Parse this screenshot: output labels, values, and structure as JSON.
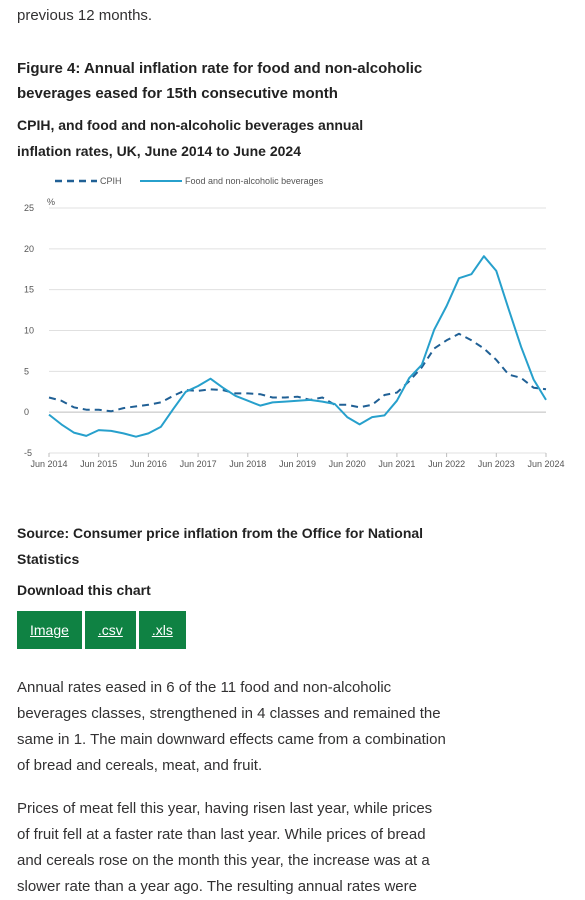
{
  "intro_text": "previous 12 months.",
  "figure": {
    "title": "Figure 4: Annual inflation rate for food and non-alcoholic beverages eased for 15th consecutive month",
    "subtitle": "CPIH, and food and non-alcoholic beverages annual inflation rates, UK, June 2014 to June 2024"
  },
  "colors": {
    "cpih": "#206095",
    "food": "#27a0cc",
    "button": "#0f8243",
    "grid": "#e0e0e0"
  },
  "chart_data": {
    "type": "line",
    "ylabel": "%",
    "ylim": [
      -5,
      25
    ],
    "yticks": [
      "25",
      "20",
      "15",
      "10",
      "5",
      "0",
      "-5"
    ],
    "xticks": [
      "Jun 2014",
      "Jun 2015",
      "Jun 2016",
      "Jun 2017",
      "Jun 2018",
      "Jun 2019",
      "Jun 2020",
      "Jun 2021",
      "Jun 2022",
      "Jun 2023",
      "Jun 2024"
    ],
    "legend_position": "top-left",
    "series": [
      {
        "name": "CPIH",
        "style": "dashed",
        "points": [
          [
            2014.5,
            1.8
          ],
          [
            2014.75,
            1.4
          ],
          [
            2015.0,
            0.6
          ],
          [
            2015.25,
            0.3
          ],
          [
            2015.5,
            0.3
          ],
          [
            2015.75,
            0.1
          ],
          [
            2016.0,
            0.5
          ],
          [
            2016.25,
            0.7
          ],
          [
            2016.5,
            0.9
          ],
          [
            2016.75,
            1.2
          ],
          [
            2017.0,
            2.0
          ],
          [
            2017.25,
            2.7
          ],
          [
            2017.5,
            2.6
          ],
          [
            2017.75,
            2.8
          ],
          [
            2018.0,
            2.7
          ],
          [
            2018.25,
            2.3
          ],
          [
            2018.5,
            2.3
          ],
          [
            2018.75,
            2.2
          ],
          [
            2019.0,
            1.8
          ],
          [
            2019.25,
            1.8
          ],
          [
            2019.5,
            1.9
          ],
          [
            2019.75,
            1.5
          ],
          [
            2020.0,
            1.8
          ],
          [
            2020.25,
            0.9
          ],
          [
            2020.5,
            0.9
          ],
          [
            2020.75,
            0.6
          ],
          [
            2021.0,
            0.9
          ],
          [
            2021.25,
            2.1
          ],
          [
            2021.5,
            2.4
          ],
          [
            2021.75,
            3.8
          ],
          [
            2022.0,
            5.5
          ],
          [
            2022.25,
            7.8
          ],
          [
            2022.5,
            8.8
          ],
          [
            2022.75,
            9.6
          ],
          [
            2023.0,
            8.8
          ],
          [
            2023.25,
            7.8
          ],
          [
            2023.5,
            6.4
          ],
          [
            2023.75,
            4.6
          ],
          [
            2024.0,
            4.2
          ],
          [
            2024.25,
            3.0
          ],
          [
            2024.5,
            2.8
          ]
        ]
      },
      {
        "name": "Food and non-alcoholic beverages",
        "style": "solid",
        "points": [
          [
            2014.5,
            -0.3
          ],
          [
            2014.75,
            -1.5
          ],
          [
            2015.0,
            -2.5
          ],
          [
            2015.25,
            -2.9
          ],
          [
            2015.5,
            -2.2
          ],
          [
            2015.75,
            -2.3
          ],
          [
            2016.0,
            -2.6
          ],
          [
            2016.25,
            -3.0
          ],
          [
            2016.5,
            -2.6
          ],
          [
            2016.75,
            -1.8
          ],
          [
            2017.0,
            0.4
          ],
          [
            2017.25,
            2.5
          ],
          [
            2017.5,
            3.2
          ],
          [
            2017.75,
            4.1
          ],
          [
            2018.0,
            3.0
          ],
          [
            2018.25,
            2.0
          ],
          [
            2018.5,
            1.4
          ],
          [
            2018.75,
            0.8
          ],
          [
            2019.0,
            1.2
          ],
          [
            2019.25,
            1.3
          ],
          [
            2019.5,
            1.4
          ],
          [
            2019.75,
            1.5
          ],
          [
            2020.0,
            1.3
          ],
          [
            2020.25,
            1.0
          ],
          [
            2020.5,
            -0.6
          ],
          [
            2020.75,
            -1.5
          ],
          [
            2021.0,
            -0.6
          ],
          [
            2021.25,
            -0.4
          ],
          [
            2021.5,
            1.4
          ],
          [
            2021.75,
            4.2
          ],
          [
            2022.0,
            5.8
          ],
          [
            2022.25,
            10.1
          ],
          [
            2022.5,
            13.0
          ],
          [
            2022.75,
            16.4
          ],
          [
            2023.0,
            16.9
          ],
          [
            2023.25,
            19.1
          ],
          [
            2023.5,
            17.3
          ],
          [
            2023.75,
            12.6
          ],
          [
            2024.0,
            8.0
          ],
          [
            2024.25,
            4.0
          ],
          [
            2024.5,
            1.5
          ]
        ]
      }
    ]
  },
  "source_text": "Source: Consumer price inflation from the Office for National Statistics",
  "download_label": "Download this chart",
  "buttons": [
    "Image",
    ".csv",
    ".xls"
  ],
  "paragraphs": [
    "Annual rates eased in 6 of the 11 food and non-alcoholic beverages classes, strengthened in 4 classes and remained the same in 1. The main downward effects came from a combination of bread and cereals, meat, and fruit.",
    "Prices of meat fell this year, having risen last year, while prices of fruit fell at a faster rate than last year. While prices of bread and cereals rose on the month this year, the increase was at a slower rate than a year ago. The resulting annual rates were"
  ]
}
